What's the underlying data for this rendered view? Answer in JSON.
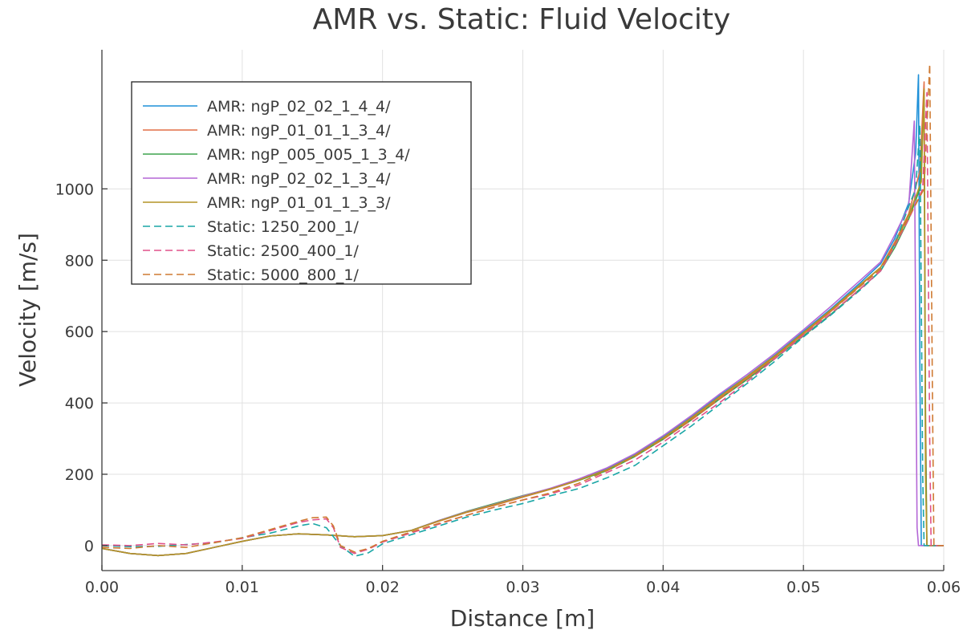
{
  "chart_data": {
    "type": "line",
    "title": "AMR vs. Static: Fluid Velocity",
    "xlabel": "Distance [m]",
    "ylabel": "Velocity [m/s]",
    "xlim": [
      0,
      0.06
    ],
    "ylim": [
      -70,
      1390
    ],
    "x_ticks": [
      0.0,
      0.01,
      0.02,
      0.03,
      0.04,
      0.05,
      0.06
    ],
    "x_tick_labels": [
      "0.00",
      "0.01",
      "0.02",
      "0.03",
      "0.04",
      "0.05",
      "0.06"
    ],
    "y_ticks": [
      0,
      200,
      400,
      600,
      800,
      1000
    ],
    "y_tick_labels": [
      "0",
      "200",
      "400",
      "600",
      "800",
      "1000"
    ],
    "grid": true,
    "legend_position": "top-left",
    "series": [
      {
        "name": "AMR: ngP_02_02_1_4_4/",
        "color": "#1e90d8",
        "dash": "solid",
        "x": [
          0,
          0.002,
          0.004,
          0.006,
          0.008,
          0.01,
          0.012,
          0.014,
          0.016,
          0.018,
          0.02,
          0.022,
          0.024,
          0.026,
          0.028,
          0.03,
          0.032,
          0.034,
          0.036,
          0.038,
          0.04,
          0.042,
          0.044,
          0.046,
          0.048,
          0.05,
          0.052,
          0.054,
          0.0555,
          0.0565,
          0.0575,
          0.058,
          0.0582,
          0.0583,
          0.0584,
          0.0588,
          0.06
        ],
        "y": [
          -8,
          -22,
          -28,
          -22,
          -5,
          12,
          27,
          33,
          30,
          25,
          28,
          42,
          70,
          95,
          115,
          138,
          160,
          185,
          215,
          255,
          305,
          360,
          420,
          475,
          535,
          600,
          665,
          735,
          790,
          860,
          960,
          1100,
          1320,
          500,
          0,
          0,
          0
        ]
      },
      {
        "name": "AMR: ngP_01_01_1_3_4/",
        "color": "#e26f46",
        "dash": "solid",
        "x": [
          0,
          0.002,
          0.004,
          0.006,
          0.008,
          0.01,
          0.012,
          0.014,
          0.016,
          0.018,
          0.02,
          0.022,
          0.024,
          0.026,
          0.028,
          0.03,
          0.032,
          0.034,
          0.036,
          0.038,
          0.04,
          0.042,
          0.044,
          0.046,
          0.048,
          0.05,
          0.052,
          0.054,
          0.0555,
          0.0565,
          0.0575,
          0.0583,
          0.0586,
          0.0587,
          0.0588,
          0.059,
          0.06
        ],
        "y": [
          -8,
          -22,
          -28,
          -22,
          -5,
          12,
          27,
          33,
          30,
          25,
          28,
          42,
          68,
          93,
          113,
          136,
          158,
          183,
          212,
          252,
          300,
          355,
          413,
          470,
          530,
          593,
          658,
          727,
          780,
          850,
          930,
          1050,
          1300,
          400,
          0,
          0,
          0
        ]
      },
      {
        "name": "AMR: ngP_005_005_1_3_4/",
        "color": "#3da44d",
        "dash": "solid",
        "x": [
          0,
          0.002,
          0.004,
          0.006,
          0.008,
          0.01,
          0.012,
          0.014,
          0.016,
          0.018,
          0.02,
          0.022,
          0.024,
          0.026,
          0.028,
          0.03,
          0.032,
          0.034,
          0.036,
          0.038,
          0.04,
          0.042,
          0.044,
          0.046,
          0.048,
          0.05,
          0.052,
          0.054,
          0.0555,
          0.0565,
          0.0575,
          0.0583,
          0.0586,
          0.0587,
          0.0588,
          0.059,
          0.06
        ],
        "y": [
          -8,
          -22,
          -28,
          -22,
          -5,
          12,
          27,
          33,
          30,
          25,
          28,
          42,
          70,
          96,
          118,
          140,
          160,
          183,
          210,
          250,
          298,
          352,
          410,
          466,
          525,
          588,
          650,
          718,
          770,
          835,
          915,
          1000,
          1240,
          300,
          0,
          0,
          0
        ]
      },
      {
        "name": "AMR: ngP_02_02_1_3_4/",
        "color": "#b467d6",
        "dash": "solid",
        "x": [
          0,
          0.002,
          0.004,
          0.006,
          0.008,
          0.01,
          0.012,
          0.014,
          0.016,
          0.018,
          0.02,
          0.022,
          0.024,
          0.026,
          0.028,
          0.03,
          0.032,
          0.034,
          0.036,
          0.038,
          0.04,
          0.042,
          0.044,
          0.046,
          0.048,
          0.05,
          0.052,
          0.054,
          0.0555,
          0.0565,
          0.0575,
          0.0579,
          0.058,
          0.0581,
          0.0582,
          0.06
        ],
        "y": [
          -8,
          -22,
          -28,
          -22,
          -5,
          12,
          27,
          33,
          30,
          25,
          28,
          42,
          70,
          95,
          116,
          139,
          161,
          187,
          218,
          258,
          308,
          364,
          424,
          480,
          540,
          605,
          672,
          742,
          795,
          870,
          950,
          1190,
          600,
          50,
          0,
          0
        ]
      },
      {
        "name": "AMR: ngP_01_01_1_3_3/",
        "color": "#b49426",
        "dash": "solid",
        "x": [
          0,
          0.002,
          0.004,
          0.006,
          0.008,
          0.01,
          0.012,
          0.014,
          0.016,
          0.018,
          0.02,
          0.022,
          0.024,
          0.026,
          0.028,
          0.03,
          0.032,
          0.034,
          0.036,
          0.038,
          0.04,
          0.042,
          0.044,
          0.046,
          0.048,
          0.05,
          0.052,
          0.054,
          0.0555,
          0.0565,
          0.0575,
          0.0584,
          0.0586,
          0.0587,
          0.0588,
          0.06
        ],
        "y": [
          -8,
          -22,
          -28,
          -22,
          -5,
          12,
          27,
          33,
          30,
          25,
          28,
          42,
          69,
          94,
          115,
          137,
          159,
          184,
          213,
          253,
          302,
          358,
          417,
          474,
          533,
          597,
          662,
          730,
          780,
          845,
          925,
          1020,
          1280,
          200,
          0,
          0
        ]
      },
      {
        "name": "Static: 1250_200_1/",
        "color": "#1aa6a6",
        "dash": "dashed",
        "x": [
          0,
          0.002,
          0.004,
          0.006,
          0.008,
          0.01,
          0.012,
          0.014,
          0.015,
          0.016,
          0.017,
          0.018,
          0.019,
          0.02,
          0.022,
          0.024,
          0.026,
          0.028,
          0.03,
          0.032,
          0.034,
          0.036,
          0.038,
          0.04,
          0.042,
          0.044,
          0.046,
          0.048,
          0.05,
          0.052,
          0.054,
          0.0555,
          0.0565,
          0.0575,
          0.058,
          0.0583,
          0.0585,
          0.0586,
          0.06
        ],
        "y": [
          0,
          -3,
          -2,
          3,
          8,
          22,
          35,
          55,
          62,
          50,
          0,
          -30,
          -20,
          5,
          30,
          55,
          80,
          100,
          118,
          140,
          160,
          190,
          225,
          280,
          335,
          395,
          455,
          518,
          585,
          648,
          715,
          770,
          845,
          950,
          1000,
          1180,
          200,
          0,
          0
        ]
      },
      {
        "name": "Static: 2500_400_1/",
        "color": "#e0508a",
        "dash": "dashed",
        "x": [
          0,
          0.002,
          0.004,
          0.006,
          0.008,
          0.01,
          0.012,
          0.014,
          0.015,
          0.016,
          0.0165,
          0.017,
          0.018,
          0.019,
          0.02,
          0.022,
          0.024,
          0.026,
          0.028,
          0.03,
          0.032,
          0.034,
          0.036,
          0.038,
          0.04,
          0.042,
          0.044,
          0.046,
          0.048,
          0.05,
          0.052,
          0.054,
          0.0555,
          0.0565,
          0.0575,
          0.0585,
          0.0588,
          0.059,
          0.0591,
          0.06
        ],
        "y": [
          2,
          0,
          6,
          2,
          10,
          20,
          42,
          65,
          72,
          75,
          50,
          -5,
          -22,
          -10,
          10,
          35,
          60,
          85,
          108,
          128,
          145,
          170,
          205,
          240,
          290,
          345,
          400,
          460,
          525,
          590,
          652,
          718,
          770,
          840,
          915,
          1000,
          1270,
          300,
          0,
          0
        ]
      },
      {
        "name": "Static: 5000_800_1/",
        "color": "#cf7a32",
        "dash": "dashed",
        "x": [
          0,
          0.002,
          0.004,
          0.006,
          0.008,
          0.01,
          0.012,
          0.014,
          0.015,
          0.016,
          0.0165,
          0.017,
          0.018,
          0.019,
          0.02,
          0.022,
          0.024,
          0.026,
          0.028,
          0.03,
          0.032,
          0.034,
          0.036,
          0.038,
          0.04,
          0.042,
          0.044,
          0.046,
          0.048,
          0.05,
          0.052,
          0.054,
          0.0555,
          0.0565,
          0.0575,
          0.0586,
          0.059,
          0.0592,
          0.0593,
          0.06
        ],
        "y": [
          -5,
          -8,
          0,
          -5,
          8,
          22,
          45,
          68,
          78,
          80,
          55,
          0,
          -18,
          -8,
          12,
          38,
          62,
          85,
          108,
          128,
          148,
          175,
          210,
          250,
          298,
          352,
          410,
          468,
          530,
          595,
          658,
          725,
          775,
          845,
          920,
          1000,
          1350,
          400,
          0,
          0
        ]
      }
    ]
  }
}
